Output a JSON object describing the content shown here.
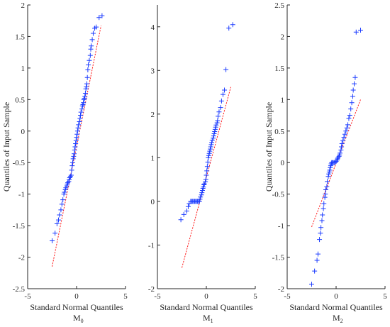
{
  "chart_data": [
    {
      "type": "scatter",
      "id": "M0",
      "panel_label": "M",
      "panel_sub": "0",
      "xlabel": "Standard Normal Quantiles",
      "ylabel": "Quantiles of Input Sample",
      "xlim": [
        -5,
        5
      ],
      "ylim": [
        -2.5,
        2
      ],
      "xticks": [
        -5,
        0,
        5
      ],
      "yticks": [
        -2.5,
        -2,
        -1.5,
        -1,
        -0.5,
        0,
        0.5,
        1,
        1.5,
        2
      ],
      "yticklabels": [
        "-2.5",
        "-2",
        "-1.5",
        "-1",
        "-0.5",
        "0",
        "0.5",
        "1",
        "1.5",
        "2"
      ],
      "reference_line": [
        [
          -2.5,
          -2.15
        ],
        [
          2.5,
          1.67
        ]
      ],
      "points": [
        [
          -2.5,
          -1.74
        ],
        [
          -2.2,
          -1.62
        ],
        [
          -2.0,
          -1.47
        ],
        [
          -1.85,
          -1.41
        ],
        [
          -1.75,
          -1.33
        ],
        [
          -1.6,
          -1.25
        ],
        [
          -1.5,
          -1.16
        ],
        [
          -1.4,
          -1.09
        ],
        [
          -1.3,
          -1.0
        ],
        [
          -1.25,
          -0.97
        ],
        [
          -1.15,
          -0.93
        ],
        [
          -1.1,
          -0.9
        ],
        [
          -1.0,
          -0.87
        ],
        [
          -0.95,
          -0.84
        ],
        [
          -0.9,
          -0.82
        ],
        [
          -0.8,
          -0.8
        ],
        [
          -0.75,
          -0.77
        ],
        [
          -0.7,
          -0.74
        ],
        [
          -0.62,
          -0.72
        ],
        [
          -0.55,
          -0.7
        ],
        [
          -0.5,
          -0.62
        ],
        [
          -0.45,
          -0.55
        ],
        [
          -0.4,
          -0.5
        ],
        [
          -0.35,
          -0.44
        ],
        [
          -0.3,
          -0.4
        ],
        [
          -0.25,
          -0.36
        ],
        [
          -0.2,
          -0.3
        ],
        [
          -0.15,
          -0.25
        ],
        [
          -0.1,
          -0.2
        ],
        [
          -0.05,
          -0.15
        ],
        [
          0.0,
          -0.1
        ],
        [
          0.05,
          -0.05
        ],
        [
          0.1,
          0.0
        ],
        [
          0.15,
          0.05
        ],
        [
          0.2,
          0.1
        ],
        [
          0.3,
          0.15
        ],
        [
          0.35,
          0.2
        ],
        [
          0.4,
          0.25
        ],
        [
          0.45,
          0.3
        ],
        [
          0.55,
          0.35
        ],
        [
          0.6,
          0.4
        ],
        [
          0.65,
          0.42
        ],
        [
          0.7,
          0.45
        ],
        [
          0.75,
          0.5
        ],
        [
          0.8,
          0.52
        ],
        [
          0.85,
          0.55
        ],
        [
          0.9,
          0.6
        ],
        [
          0.95,
          0.67
        ],
        [
          1.0,
          0.7
        ],
        [
          1.05,
          0.75
        ],
        [
          1.1,
          0.85
        ],
        [
          1.15,
          0.97
        ],
        [
          1.2,
          1.05
        ],
        [
          1.3,
          1.12
        ],
        [
          1.4,
          1.2
        ],
        [
          1.45,
          1.3
        ],
        [
          1.5,
          1.35
        ],
        [
          1.6,
          1.45
        ],
        [
          1.7,
          1.55
        ],
        [
          1.85,
          1.63
        ],
        [
          2.0,
          1.65
        ],
        [
          2.3,
          1.8
        ],
        [
          2.6,
          1.83
        ]
      ]
    },
    {
      "type": "scatter",
      "id": "M1",
      "panel_label": "M",
      "panel_sub": "1",
      "xlabel": "Standard Normal Quantiles",
      "ylabel": "",
      "xlim": [
        -5,
        5
      ],
      "ylim": [
        -2,
        4.5
      ],
      "xticks": [
        -5,
        0,
        5
      ],
      "yticks": [
        -2,
        -1,
        0,
        1,
        2,
        3,
        4
      ],
      "yticklabels": [
        "-2",
        "-1",
        "0",
        "1",
        "2",
        "3",
        "4"
      ],
      "reference_line": [
        [
          -2.5,
          -1.52
        ],
        [
          2.5,
          2.62
        ]
      ],
      "points": [
        [
          -2.6,
          -0.42
        ],
        [
          -2.3,
          -0.3
        ],
        [
          -2.0,
          -0.22
        ],
        [
          -1.85,
          -0.12
        ],
        [
          -1.75,
          -0.05
        ],
        [
          -1.6,
          0.0
        ],
        [
          -1.5,
          0.0
        ],
        [
          -1.4,
          0.0
        ],
        [
          -1.3,
          0.0
        ],
        [
          -1.2,
          0.0
        ],
        [
          -1.1,
          0.0
        ],
        [
          -1.0,
          0.0
        ],
        [
          -0.9,
          0.0
        ],
        [
          -0.8,
          0.0
        ],
        [
          -0.7,
          0.0
        ],
        [
          -0.65,
          0.05
        ],
        [
          -0.6,
          0.1
        ],
        [
          -0.5,
          0.15
        ],
        [
          -0.45,
          0.2
        ],
        [
          -0.4,
          0.25
        ],
        [
          -0.35,
          0.3
        ],
        [
          -0.3,
          0.33
        ],
        [
          -0.25,
          0.38
        ],
        [
          -0.2,
          0.4
        ],
        [
          -0.1,
          0.45
        ],
        [
          -0.05,
          0.5
        ],
        [
          0.0,
          0.6
        ],
        [
          0.05,
          0.7
        ],
        [
          0.1,
          0.8
        ],
        [
          0.15,
          0.9
        ],
        [
          0.2,
          1.0
        ],
        [
          0.25,
          1.05
        ],
        [
          0.3,
          1.1
        ],
        [
          0.35,
          1.15
        ],
        [
          0.4,
          1.2
        ],
        [
          0.45,
          1.25
        ],
        [
          0.5,
          1.3
        ],
        [
          0.55,
          1.35
        ],
        [
          0.6,
          1.4
        ],
        [
          0.7,
          1.45
        ],
        [
          0.75,
          1.5
        ],
        [
          0.8,
          1.55
        ],
        [
          0.85,
          1.6
        ],
        [
          0.9,
          1.65
        ],
        [
          0.95,
          1.7
        ],
        [
          1.0,
          1.75
        ],
        [
          1.1,
          1.8
        ],
        [
          1.15,
          1.85
        ],
        [
          1.2,
          1.95
        ],
        [
          1.3,
          2.05
        ],
        [
          1.45,
          2.15
        ],
        [
          1.55,
          2.3
        ],
        [
          1.7,
          2.45
        ],
        [
          1.85,
          2.55
        ],
        [
          2.0,
          3.02
        ],
        [
          2.3,
          3.97
        ],
        [
          2.7,
          4.05
        ]
      ]
    },
    {
      "type": "scatter",
      "id": "M2",
      "panel_label": "M",
      "panel_sub": "2",
      "xlabel": "Standard Normal Quantiles",
      "ylabel": "Quantiles of Input Sample",
      "xlim": [
        -5,
        5
      ],
      "ylim": [
        -2,
        2.5
      ],
      "xticks": [
        -5,
        0,
        5
      ],
      "yticks": [
        -2,
        -1.5,
        -1,
        -0.5,
        0,
        0.5,
        1,
        1.5,
        2,
        2.5
      ],
      "yticklabels": [
        "-2",
        "-1.5",
        "-1",
        "-0.5",
        "0",
        "0.5",
        "1",
        "1.5",
        "2",
        "2.5"
      ],
      "reference_line": [
        [
          -2.5,
          -1.02
        ],
        [
          2.5,
          1.0
        ]
      ],
      "points": [
        [
          -2.5,
          -1.93
        ],
        [
          -2.2,
          -1.72
        ],
        [
          -1.95,
          -1.55
        ],
        [
          -1.85,
          -1.45
        ],
        [
          -1.7,
          -1.22
        ],
        [
          -1.6,
          -1.12
        ],
        [
          -1.55,
          -1.03
        ],
        [
          -1.45,
          -0.92
        ],
        [
          -1.4,
          -0.83
        ],
        [
          -1.3,
          -0.73
        ],
        [
          -1.25,
          -0.65
        ],
        [
          -1.15,
          -0.55
        ],
        [
          -1.1,
          -0.5
        ],
        [
          -1.05,
          -0.43
        ],
        [
          -0.95,
          -0.38
        ],
        [
          -0.9,
          -0.3
        ],
        [
          -0.8,
          -0.22
        ],
        [
          -0.75,
          -0.18
        ],
        [
          -0.7,
          -0.15
        ],
        [
          -0.65,
          -0.12
        ],
        [
          -0.6,
          -0.08
        ],
        [
          -0.55,
          -0.05
        ],
        [
          -0.5,
          -0.02
        ],
        [
          -0.45,
          0.0
        ],
        [
          -0.4,
          0.0
        ],
        [
          -0.3,
          0.0
        ],
        [
          -0.2,
          0.0
        ],
        [
          -0.1,
          0.0
        ],
        [
          0.0,
          0.02
        ],
        [
          0.1,
          0.04
        ],
        [
          0.15,
          0.06
        ],
        [
          0.2,
          0.08
        ],
        [
          0.3,
          0.1
        ],
        [
          0.35,
          0.12
        ],
        [
          0.4,
          0.15
        ],
        [
          0.5,
          0.2
        ],
        [
          0.55,
          0.25
        ],
        [
          0.6,
          0.3
        ],
        [
          0.7,
          0.35
        ],
        [
          0.8,
          0.4
        ],
        [
          0.9,
          0.45
        ],
        [
          1.0,
          0.5
        ],
        [
          1.1,
          0.55
        ],
        [
          1.2,
          0.6
        ],
        [
          1.3,
          0.7
        ],
        [
          1.4,
          0.75
        ],
        [
          1.5,
          0.85
        ],
        [
          1.6,
          0.95
        ],
        [
          1.7,
          1.05
        ],
        [
          1.75,
          1.15
        ],
        [
          1.85,
          1.25
        ],
        [
          1.95,
          1.35
        ],
        [
          2.05,
          2.07
        ],
        [
          2.5,
          2.1
        ]
      ]
    }
  ]
}
